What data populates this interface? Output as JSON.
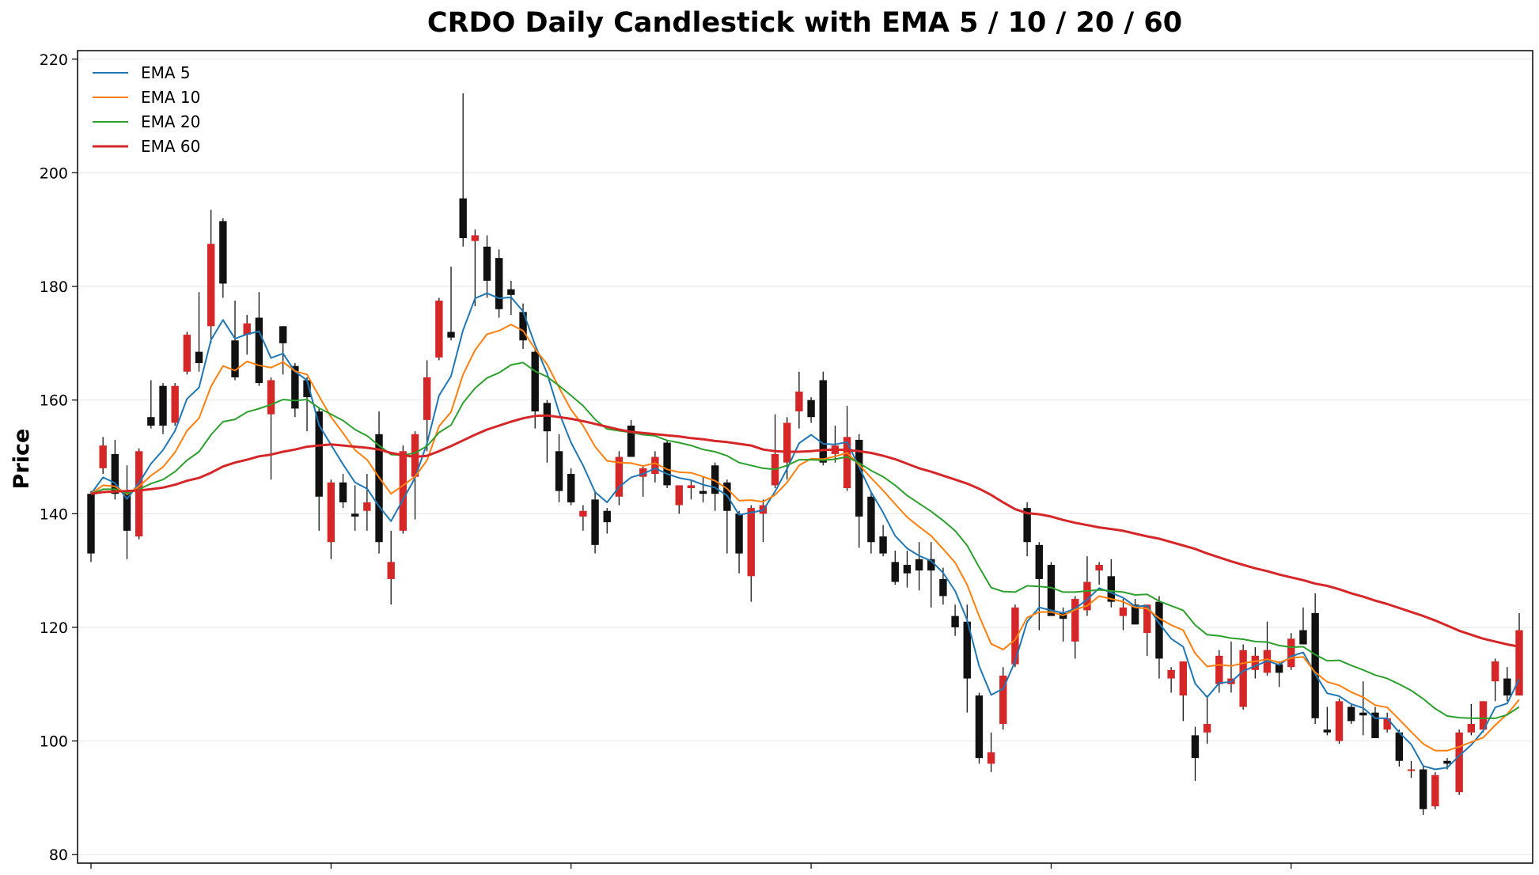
{
  "chart_data": {
    "type": "candlestick",
    "title": "CRDO Daily Candlestick with EMA 5 / 10 / 20 / 60",
    "ylabel": "Price",
    "xlabel": "",
    "ylim": [
      78.5,
      221.5
    ],
    "yticks": [
      80,
      100,
      120,
      140,
      160,
      180,
      200,
      220
    ],
    "grid": "horizontal",
    "legend_position": "top-left",
    "colors": {
      "up": "#d62728",
      "down": "#111111",
      "wick": "#000000",
      "grid": "#e6e6e6"
    },
    "candles": [
      [
        143.5,
        144.0,
        131.5,
        133.0
      ],
      [
        148.0,
        153.5,
        147.0,
        152.0
      ],
      [
        150.5,
        153.0,
        142.5,
        143.5
      ],
      [
        144.0,
        148.5,
        132.0,
        137.0
      ],
      [
        136.0,
        151.5,
        135.5,
        151.0
      ],
      [
        157.0,
        163.5,
        155.0,
        155.5
      ],
      [
        162.5,
        163.0,
        154.0,
        155.5
      ],
      [
        156.0,
        163.0,
        155.5,
        162.5
      ],
      [
        165.0,
        172.0,
        164.5,
        171.5
      ],
      [
        168.5,
        179.0,
        165.0,
        166.5
      ],
      [
        173.0,
        193.5,
        170.0,
        187.5
      ],
      [
        191.5,
        192.0,
        178.0,
        180.5
      ],
      [
        170.5,
        177.5,
        163.5,
        164.0
      ],
      [
        171.5,
        175.0,
        168.0,
        173.5
      ],
      [
        174.5,
        179.0,
        162.5,
        163.0
      ],
      [
        157.5,
        164.0,
        146.0,
        163.5
      ],
      [
        173.0,
        173.0,
        164.5,
        170.0
      ],
      [
        166.0,
        166.5,
        157.0,
        158.5
      ],
      [
        163.5,
        164.0,
        154.5,
        160.5
      ],
      [
        158.0,
        158.5,
        137.0,
        143.0
      ],
      [
        135.0,
        146.0,
        132.0,
        145.5
      ],
      [
        145.5,
        147.0,
        141.0,
        142.0
      ],
      [
        140.0,
        145.0,
        137.0,
        139.5
      ],
      [
        140.5,
        147.0,
        137.0,
        142.0
      ],
      [
        154.0,
        158.0,
        133.0,
        135.0
      ],
      [
        128.5,
        137.0,
        124.0,
        131.5
      ],
      [
        137.0,
        152.0,
        136.5,
        151.0
      ],
      [
        146.5,
        154.5,
        139.0,
        154.0
      ],
      [
        156.5,
        167.0,
        151.0,
        164.0
      ],
      [
        167.5,
        178.0,
        167.0,
        177.5
      ],
      [
        172.0,
        183.5,
        170.5,
        171.0
      ],
      [
        195.5,
        214.0,
        187.0,
        188.5
      ],
      [
        188.0,
        190.0,
        176.5,
        189.0
      ],
      [
        187.0,
        189.0,
        178.0,
        181.0
      ],
      [
        185.0,
        186.5,
        174.5,
        176.0
      ],
      [
        179.5,
        181.0,
        175.0,
        178.5
      ],
      [
        175.5,
        177.0,
        169.0,
        170.5
      ],
      [
        168.5,
        169.0,
        155.0,
        158.0
      ],
      [
        159.5,
        160.0,
        149.0,
        154.5
      ],
      [
        151.0,
        154.0,
        142.0,
        144.0
      ],
      [
        147.0,
        148.0,
        141.5,
        142.0
      ],
      [
        139.5,
        141.5,
        137.0,
        140.5
      ],
      [
        142.5,
        144.0,
        133.0,
        134.5
      ],
      [
        140.5,
        141.0,
        136.5,
        138.5
      ],
      [
        143.0,
        151.0,
        141.5,
        150.0
      ],
      [
        155.5,
        156.5,
        150.0,
        150.0
      ],
      [
        146.5,
        148.5,
        143.0,
        148.0
      ],
      [
        147.0,
        151.0,
        145.5,
        150.0
      ],
      [
        152.5,
        153.0,
        144.5,
        145.0
      ],
      [
        141.5,
        145.0,
        140.0,
        145.0
      ],
      [
        144.5,
        146.0,
        142.5,
        145.0
      ],
      [
        144.0,
        146.5,
        142.0,
        143.5
      ],
      [
        148.5,
        149.0,
        140.5,
        143.5
      ],
      [
        145.5,
        146.0,
        133.0,
        140.5
      ],
      [
        140.0,
        140.5,
        129.5,
        133.0
      ],
      [
        129.0,
        141.5,
        124.5,
        141.0
      ],
      [
        140.0,
        142.5,
        135.0,
        141.5
      ],
      [
        145.0,
        157.5,
        144.5,
        150.5
      ],
      [
        149.0,
        157.0,
        146.0,
        156.0
      ],
      [
        158.0,
        165.0,
        155.0,
        161.5
      ],
      [
        160.0,
        160.5,
        156.0,
        157.0
      ],
      [
        163.5,
        165.0,
        148.5,
        149.0
      ],
      [
        150.5,
        155.5,
        149.0,
        152.0
      ],
      [
        144.5,
        159.0,
        144.0,
        153.5
      ],
      [
        153.0,
        154.0,
        134.0,
        139.5
      ],
      [
        143.0,
        144.0,
        133.0,
        135.0
      ],
      [
        136.0,
        138.0,
        132.5,
        133.0
      ],
      [
        131.5,
        133.5,
        127.5,
        128.0
      ],
      [
        131.0,
        133.5,
        127.0,
        129.5
      ],
      [
        132.0,
        135.0,
        126.5,
        130.0
      ],
      [
        132.0,
        135.0,
        123.5,
        130.0
      ],
      [
        128.5,
        130.5,
        124.0,
        125.5
      ],
      [
        122.0,
        124.0,
        118.5,
        120.0
      ],
      [
        121.0,
        124.0,
        105.0,
        111.0
      ],
      [
        108.0,
        108.5,
        96.0,
        97.0
      ],
      [
        96.0,
        101.5,
        94.5,
        98.0
      ],
      [
        103.0,
        113.0,
        102.0,
        111.5
      ],
      [
        113.5,
        124.0,
        113.0,
        123.5
      ],
      [
        141.0,
        142.0,
        132.5,
        135.0
      ],
      [
        134.5,
        135.0,
        119.5,
        128.5
      ],
      [
        131.0,
        131.5,
        122.5,
        122.0
      ],
      [
        122.5,
        123.5,
        117.5,
        121.5
      ],
      [
        117.5,
        125.5,
        114.5,
        125.0
      ],
      [
        123.0,
        132.5,
        122.0,
        128.0
      ],
      [
        130.0,
        131.5,
        127.5,
        131.0
      ],
      [
        129.0,
        132.0,
        123.5,
        124.5
      ],
      [
        122.0,
        125.0,
        119.5,
        123.5
      ],
      [
        124.0,
        125.0,
        121.0,
        120.5
      ],
      [
        119.0,
        124.0,
        115.0,
        124.0
      ],
      [
        124.5,
        125.5,
        111.0,
        114.5
      ],
      [
        111.0,
        113.0,
        108.5,
        112.5
      ],
      [
        108.0,
        114.0,
        103.5,
        114.0
      ],
      [
        101.0,
        102.5,
        93.0,
        97.0
      ],
      [
        101.5,
        108.0,
        99.5,
        103.0
      ],
      [
        110.0,
        116.0,
        108.5,
        115.0
      ],
      [
        110.0,
        117.5,
        108.5,
        111.0
      ],
      [
        106.0,
        117.0,
        105.5,
        116.0
      ],
      [
        112.5,
        116.5,
        111.0,
        115.0
      ],
      [
        112.0,
        121.0,
        111.5,
        116.0
      ],
      [
        113.5,
        114.0,
        109.5,
        112.0
      ],
      [
        113.0,
        119.0,
        112.5,
        118.0
      ],
      [
        119.5,
        123.5,
        118.0,
        117.0
      ],
      [
        122.5,
        126.0,
        103.0,
        104.0
      ],
      [
        102.0,
        106.0,
        101.0,
        101.5
      ],
      [
        100.0,
        107.5,
        99.5,
        107.0
      ],
      [
        106.0,
        106.5,
        103.0,
        103.5
      ],
      [
        105.0,
        110.5,
        101.0,
        104.5
      ],
      [
        105.0,
        106.0,
        101.0,
        100.5
      ],
      [
        102.0,
        105.0,
        101.5,
        104.0
      ],
      [
        101.5,
        102.0,
        95.5,
        96.5
      ],
      [
        95.0,
        96.5,
        93.5,
        95.0
      ],
      [
        95.0,
        95.5,
        87.0,
        88.0
      ],
      [
        88.5,
        94.5,
        88.0,
        94.0
      ],
      [
        96.5,
        97.0,
        95.0,
        96.0
      ],
      [
        91.0,
        102.0,
        90.5,
        101.5
      ],
      [
        101.5,
        106.5,
        101.0,
        103.0
      ],
      [
        102.0,
        107.0,
        101.5,
        107.0
      ],
      [
        110.5,
        114.5,
        107.0,
        114.0
      ],
      [
        111.0,
        113.0,
        107.0,
        108.0
      ],
      [
        108.0,
        122.5,
        108.0,
        119.5
      ]
    ],
    "series": [
      {
        "name": "EMA 5",
        "color": "#1f77b4",
        "values": [
          143.5,
          146.4,
          145.4,
          142.6,
          145.4,
          148.8,
          151.2,
          154.6,
          160.2,
          162.2,
          170.6,
          174.1,
          170.8,
          171.6,
          172.1,
          167.4,
          168.2,
          165.0,
          163.5,
          155.6,
          152.1,
          148.7,
          145.5,
          144.4,
          141.3,
          138.7,
          142.5,
          146.3,
          152.4,
          160.8,
          164.2,
          172.3,
          177.9,
          178.8,
          177.9,
          178.1,
          175.6,
          169.7,
          164.7,
          157.8,
          152.5,
          148.5,
          143.8,
          142.0,
          144.7,
          146.4,
          147.0,
          148.0,
          147.0,
          146.3,
          145.9,
          145.1,
          144.6,
          143.2,
          139.8,
          140.2,
          140.6,
          143.9,
          147.9,
          152.4,
          153.9,
          152.3,
          152.2,
          152.6,
          148.2,
          143.8,
          140.2,
          136.1,
          133.9,
          132.6,
          131.7,
          129.6,
          126.4,
          121.3,
          113.2,
          108.1,
          109.2,
          114.0,
          121.0,
          123.5,
          123.0,
          122.5,
          123.3,
          124.9,
          126.9,
          126.1,
          125.2,
          123.7,
          123.8,
          120.7,
          118.0,
          116.6,
          110.1,
          107.7,
          110.2,
          110.4,
          112.3,
          113.2,
          114.1,
          113.4,
          114.9,
          115.6,
          111.8,
          108.4,
          107.9,
          106.5,
          105.8,
          104.0,
          104.0,
          101.5,
          99.4,
          95.6,
          95.0,
          95.3,
          97.4,
          99.3,
          101.8,
          105.9,
          106.6,
          110.9
        ]
      },
      {
        "name": "EMA 10",
        "color": "#ff7f0e",
        "values": [
          143.5,
          145.0,
          144.8,
          143.4,
          144.8,
          146.7,
          148.2,
          150.8,
          154.6,
          156.8,
          162.4,
          166.0,
          165.2,
          166.8,
          166.1,
          165.7,
          166.7,
          165.1,
          164.5,
          160.7,
          157.0,
          154.2,
          151.2,
          149.5,
          146.4,
          143.5,
          145.0,
          146.5,
          149.4,
          155.4,
          157.9,
          164.5,
          168.8,
          171.6,
          172.2,
          173.3,
          172.2,
          169.0,
          166.3,
          162.2,
          158.3,
          155.5,
          151.8,
          149.3,
          149.0,
          148.9,
          148.4,
          148.9,
          147.8,
          147.3,
          147.2,
          146.5,
          145.8,
          144.4,
          142.3,
          142.4,
          142.1,
          143.3,
          145.5,
          148.5,
          149.7,
          149.6,
          150.1,
          150.7,
          148.6,
          146.3,
          144.1,
          141.7,
          139.4,
          137.7,
          136.1,
          133.8,
          131.4,
          127.5,
          122.0,
          117.1,
          116.1,
          117.8,
          121.7,
          122.7,
          122.7,
          122.1,
          123.1,
          123.8,
          125.5,
          125.0,
          124.5,
          123.5,
          123.3,
          121.6,
          120.4,
          119.5,
          115.4,
          113.1,
          113.4,
          113.2,
          113.7,
          114.0,
          114.4,
          113.8,
          114.6,
          114.8,
          112.1,
          110.4,
          109.8,
          108.6,
          107.7,
          106.3,
          105.9,
          103.8,
          101.6,
          99.5,
          98.3,
          98.3,
          99.0,
          99.8,
          100.6,
          102.8,
          104.7,
          107.3
        ]
      },
      {
        "name": "EMA 20",
        "color": "#2ca02c",
        "values": [
          143.5,
          144.3,
          144.3,
          143.6,
          144.3,
          145.3,
          146.0,
          147.4,
          149.4,
          150.9,
          153.9,
          156.2,
          156.6,
          157.9,
          158.5,
          159.2,
          160.1,
          159.9,
          160.1,
          158.6,
          157.5,
          156.4,
          154.8,
          153.7,
          152.0,
          150.4,
          150.3,
          150.7,
          151.9,
          154.3,
          155.6,
          159.5,
          162.1,
          163.9,
          164.8,
          166.2,
          166.6,
          165.1,
          164.1,
          162.5,
          160.8,
          159.0,
          156.6,
          154.9,
          154.6,
          154.3,
          153.9,
          153.7,
          152.9,
          152.5,
          152.0,
          151.3,
          150.9,
          150.2,
          149.0,
          148.5,
          148.0,
          147.8,
          148.5,
          149.5,
          149.5,
          149.4,
          149.6,
          150.0,
          148.9,
          147.6,
          146.5,
          145.0,
          143.2,
          141.8,
          140.4,
          138.8,
          137.0,
          134.4,
          130.6,
          127.0,
          126.3,
          126.2,
          127.3,
          127.2,
          127.0,
          126.2,
          126.2,
          126.4,
          126.6,
          126.4,
          126.2,
          125.7,
          125.8,
          124.6,
          123.8,
          123.0,
          120.4,
          118.7,
          118.5,
          118.1,
          117.9,
          117.5,
          117.4,
          116.8,
          116.5,
          116.6,
          115.2,
          114.1,
          114.2,
          113.3,
          112.5,
          111.6,
          111.0,
          110.0,
          108.9,
          107.4,
          105.7,
          104.4,
          104.1,
          104.0,
          104.0,
          104.0,
          104.6,
          106.0
        ]
      },
      {
        "name": "EMA 60",
        "color": "#d62728",
        "values": [
          143.5,
          143.8,
          143.9,
          144.0,
          144.1,
          144.3,
          144.6,
          145.1,
          145.8,
          146.3,
          147.2,
          148.3,
          149.0,
          149.5,
          150.1,
          150.4,
          150.9,
          151.3,
          151.8,
          152.0,
          152.2,
          152.0,
          151.8,
          151.6,
          151.3,
          150.7,
          150.3,
          150.0,
          150.2,
          151.0,
          151.9,
          152.9,
          153.9,
          154.8,
          155.5,
          156.2,
          156.8,
          157.2,
          157.3,
          157.0,
          156.7,
          156.3,
          155.8,
          155.3,
          154.8,
          154.4,
          154.2,
          154.0,
          153.8,
          153.6,
          153.3,
          153.1,
          152.8,
          152.6,
          152.3,
          152.0,
          151.3,
          151.0,
          150.9,
          150.9,
          151.0,
          151.2,
          151.3,
          151.2,
          151.0,
          150.7,
          150.2,
          149.6,
          148.8,
          148.0,
          147.4,
          146.7,
          146.0,
          145.3,
          144.4,
          143.3,
          142.0,
          140.8,
          140.1,
          139.9,
          139.5,
          138.9,
          138.4,
          138.0,
          137.6,
          137.3,
          137.0,
          136.5,
          136.0,
          135.6,
          135.0,
          134.4,
          133.8,
          133.0,
          132.3,
          131.6,
          131.0,
          130.4,
          129.9,
          129.3,
          128.8,
          128.3,
          127.7,
          127.3,
          126.7,
          126.0,
          125.4,
          124.7,
          124.1,
          123.4,
          122.7,
          122.0,
          121.2,
          120.3,
          119.4,
          118.7,
          118.0,
          117.5,
          117.0,
          116.6
        ]
      }
    ]
  }
}
